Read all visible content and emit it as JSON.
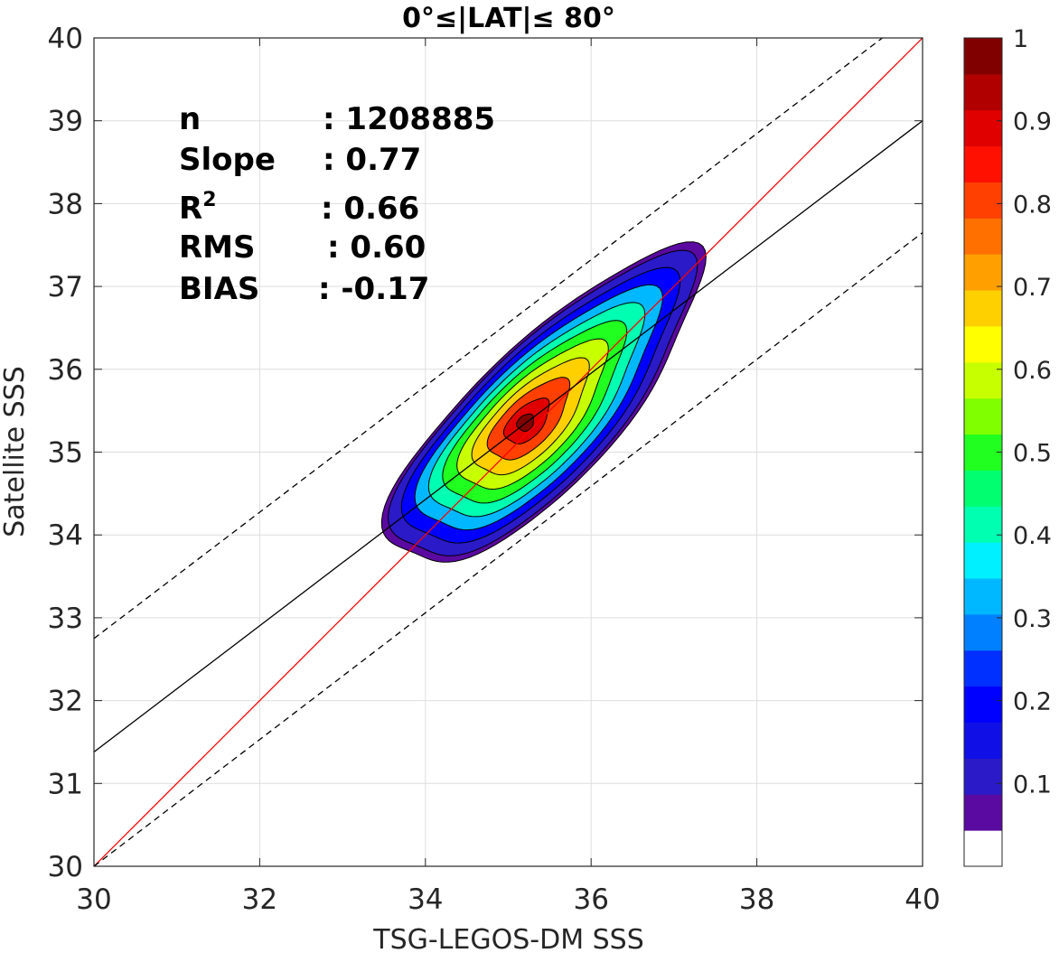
{
  "chart_data": {
    "type": "contour-density",
    "title": "0°≤|LAT|≤ 80°",
    "xlabel": "TSG-LEGOS-DM SSS",
    "ylabel": "Satellite SSS",
    "xlim": [
      30,
      40
    ],
    "ylim": [
      30,
      40
    ],
    "x_ticks": [
      "30",
      "32",
      "34",
      "36",
      "38",
      "40"
    ],
    "y_ticks": [
      "30",
      "31",
      "32",
      "33",
      "34",
      "35",
      "36",
      "37",
      "38",
      "39",
      "40"
    ],
    "grid": true,
    "stats": [
      {
        "key": "n",
        "value": ": 1208885"
      },
      {
        "key": "Slope",
        "value": ": 0.77"
      },
      {
        "key": "R",
        "sup": "2",
        "value": ": 0.66"
      },
      {
        "key": "RMS",
        "value": ": 0.60"
      },
      {
        "key": "BIAS",
        "value": ": -0.17"
      }
    ],
    "lines": [
      {
        "name": "1:1",
        "color": "#ff0000",
        "style": "solid",
        "x": [
          30,
          40
        ],
        "y": [
          30,
          40
        ]
      },
      {
        "name": "fit",
        "color": "#000000",
        "style": "solid",
        "x": [
          30,
          40
        ],
        "y": [
          31.38,
          39.0
        ]
      },
      {
        "name": "fit+",
        "color": "#000000",
        "style": "dashed",
        "x": [
          30,
          40
        ],
        "y": [
          32.75,
          40.37
        ]
      },
      {
        "name": "fit-",
        "color": "#000000",
        "style": "dashed",
        "x": [
          30,
          40
        ],
        "y": [
          30.0,
          37.65
        ]
      }
    ],
    "density_peak": {
      "x": 35.2,
      "y": 35.35
    },
    "contour_levels": [
      0.05,
      0.1,
      0.2,
      0.3,
      0.4,
      0.5,
      0.6,
      0.7,
      0.8,
      0.9,
      1.0
    ],
    "colorbar": {
      "ticks": [
        "0.1",
        "0.2",
        "0.3",
        "0.4",
        "0.5",
        "0.6",
        "0.7",
        "0.8",
        "0.9",
        "1"
      ],
      "tick_values": [
        0.1,
        0.2,
        0.3,
        0.4,
        0.5,
        0.6,
        0.7,
        0.8,
        0.9,
        1.0
      ],
      "range": [
        0,
        1
      ],
      "colors": [
        "#ffffff",
        "#5a0aa0",
        "#2a1ac8",
        "#1010e6",
        "#0000ff",
        "#0030ff",
        "#0080ff",
        "#00b8ff",
        "#00f0ff",
        "#00ffb0",
        "#00ff70",
        "#20ff20",
        "#80ff00",
        "#c8ff00",
        "#ffff00",
        "#ffd000",
        "#ffa000",
        "#ff7000",
        "#ff4000",
        "#ff1000",
        "#e00000",
        "#b00000",
        "#800000"
      ]
    }
  }
}
